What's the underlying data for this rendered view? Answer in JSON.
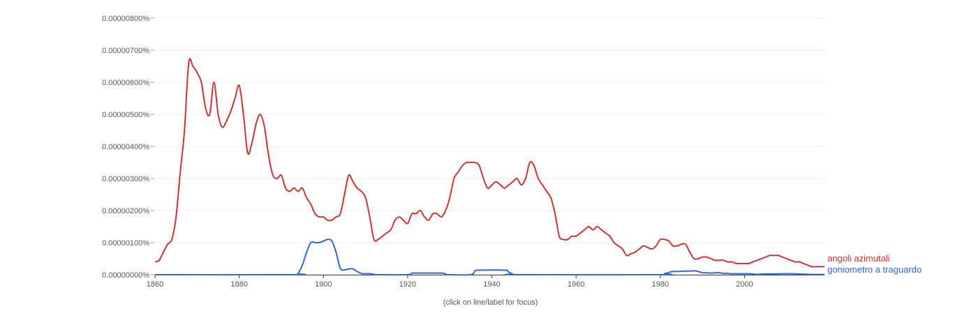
{
  "chart_data": {
    "type": "line",
    "x_ticks": [
      "1860",
      "1880",
      "1900",
      "1920",
      "1940",
      "1960",
      "1980",
      "2000"
    ],
    "y_ticks": [
      "0.00000000%",
      "0.00000100%",
      "0.00000200%",
      "0.00000300%",
      "0.00000400%",
      "0.00000500%",
      "0.00000600%",
      "0.00000700%",
      "0.00000800%"
    ],
    "xlim": [
      1860,
      2019
    ],
    "ylim": [
      0,
      8e-06
    ],
    "grid": true,
    "legend": "right, at series end",
    "series": [
      {
        "name": "angoli azimutali",
        "color": "#cc3333",
        "points": [
          [
            1860,
            4e-07
          ],
          [
            1861,
            4.5e-07
          ],
          [
            1862,
            7e-07
          ],
          [
            1863,
            9.5e-07
          ],
          [
            1864,
            1.1e-06
          ],
          [
            1865,
            1.8e-06
          ],
          [
            1866,
            3.2e-06
          ],
          [
            1867,
            4.5e-06
          ],
          [
            1868,
            6.6e-06
          ],
          [
            1869,
            6.5e-06
          ],
          [
            1870,
            6.3e-06
          ],
          [
            1871,
            6e-06
          ],
          [
            1872,
            5.2e-06
          ],
          [
            1873,
            5e-06
          ],
          [
            1874,
            6e-06
          ],
          [
            1875,
            5e-06
          ],
          [
            1876,
            4.6e-06
          ],
          [
            1877,
            4.8e-06
          ],
          [
            1878,
            5.1e-06
          ],
          [
            1879,
            5.5e-06
          ],
          [
            1880,
            5.9e-06
          ],
          [
            1881,
            5e-06
          ],
          [
            1882,
            3.8e-06
          ],
          [
            1883,
            4.1e-06
          ],
          [
            1884,
            4.7e-06
          ],
          [
            1885,
            5e-06
          ],
          [
            1886,
            4.6e-06
          ],
          [
            1887,
            3.7e-06
          ],
          [
            1888,
            3.1e-06
          ],
          [
            1889,
            3e-06
          ],
          [
            1890,
            3.1e-06
          ],
          [
            1891,
            2.7e-06
          ],
          [
            1892,
            2.6e-06
          ],
          [
            1893,
            2.7e-06
          ],
          [
            1894,
            2.6e-06
          ],
          [
            1895,
            2.7e-06
          ],
          [
            1896,
            2.4e-06
          ],
          [
            1897,
            2.2e-06
          ],
          [
            1898,
            1.9e-06
          ],
          [
            1899,
            1.8e-06
          ],
          [
            1900,
            1.8e-06
          ],
          [
            1901,
            1.7e-06
          ],
          [
            1902,
            1.7e-06
          ],
          [
            1903,
            1.8e-06
          ],
          [
            1904,
            1.9e-06
          ],
          [
            1905,
            2.5e-06
          ],
          [
            1906,
            3.1e-06
          ],
          [
            1907,
            2.9e-06
          ],
          [
            1908,
            2.7e-06
          ],
          [
            1909,
            2.6e-06
          ],
          [
            1910,
            2.4e-06
          ],
          [
            1911,
            1.8e-06
          ],
          [
            1912,
            1.1e-06
          ],
          [
            1913,
            1.1e-06
          ],
          [
            1914,
            1.2e-06
          ],
          [
            1915,
            1.3e-06
          ],
          [
            1916,
            1.4e-06
          ],
          [
            1917,
            1.7e-06
          ],
          [
            1918,
            1.8e-06
          ],
          [
            1919,
            1.7e-06
          ],
          [
            1920,
            1.6e-06
          ],
          [
            1921,
            1.9e-06
          ],
          [
            1922,
            1.9e-06
          ],
          [
            1923,
            2e-06
          ],
          [
            1924,
            1.8e-06
          ],
          [
            1925,
            1.7e-06
          ],
          [
            1926,
            1.9e-06
          ],
          [
            1927,
            1.9e-06
          ],
          [
            1928,
            1.8e-06
          ],
          [
            1929,
            2e-06
          ],
          [
            1930,
            2.4e-06
          ],
          [
            1931,
            3e-06
          ],
          [
            1932,
            3.2e-06
          ],
          [
            1933,
            3.4e-06
          ],
          [
            1934,
            3.5e-06
          ],
          [
            1935,
            3.5e-06
          ],
          [
            1936,
            3.5e-06
          ],
          [
            1937,
            3.4e-06
          ],
          [
            1938,
            3e-06
          ],
          [
            1939,
            2.7e-06
          ],
          [
            1940,
            2.8e-06
          ],
          [
            1941,
            2.9e-06
          ],
          [
            1942,
            2.8e-06
          ],
          [
            1943,
            2.7e-06
          ],
          [
            1944,
            2.8e-06
          ],
          [
            1945,
            2.9e-06
          ],
          [
            1946,
            3e-06
          ],
          [
            1947,
            2.8e-06
          ],
          [
            1948,
            3e-06
          ],
          [
            1949,
            3.5e-06
          ],
          [
            1950,
            3.4e-06
          ],
          [
            1951,
            3e-06
          ],
          [
            1952,
            2.8e-06
          ],
          [
            1953,
            2.6e-06
          ],
          [
            1954,
            2.4e-06
          ],
          [
            1955,
            1.9e-06
          ],
          [
            1956,
            1.2e-06
          ],
          [
            1957,
            1.1e-06
          ],
          [
            1958,
            1.1e-06
          ],
          [
            1959,
            1.2e-06
          ],
          [
            1960,
            1.2e-06
          ],
          [
            1961,
            1.3e-06
          ],
          [
            1962,
            1.4e-06
          ],
          [
            1963,
            1.5e-06
          ],
          [
            1964,
            1.4e-06
          ],
          [
            1965,
            1.5e-06
          ],
          [
            1966,
            1.4e-06
          ],
          [
            1967,
            1.3e-06
          ],
          [
            1968,
            1.2e-06
          ],
          [
            1969,
            1e-06
          ],
          [
            1970,
            9e-07
          ],
          [
            1971,
            8e-07
          ],
          [
            1972,
            6e-07
          ],
          [
            1973,
            6.5e-07
          ],
          [
            1974,
            7e-07
          ],
          [
            1975,
            8e-07
          ],
          [
            1976,
            9e-07
          ],
          [
            1977,
            8.5e-07
          ],
          [
            1978,
            8e-07
          ],
          [
            1979,
            9e-07
          ],
          [
            1980,
            1.1e-06
          ],
          [
            1981,
            1.1e-06
          ],
          [
            1982,
            1.05e-06
          ],
          [
            1983,
            9e-07
          ],
          [
            1984,
            9e-07
          ],
          [
            1985,
            9.5e-07
          ],
          [
            1986,
            9.5e-07
          ],
          [
            1987,
            7e-07
          ],
          [
            1988,
            5e-07
          ],
          [
            1989,
            5e-07
          ],
          [
            1990,
            5.5e-07
          ],
          [
            1991,
            5.5e-07
          ],
          [
            1992,
            5e-07
          ],
          [
            1993,
            4.5e-07
          ],
          [
            1994,
            4.5e-07
          ],
          [
            1995,
            4.5e-07
          ],
          [
            1996,
            4e-07
          ],
          [
            1997,
            4e-07
          ],
          [
            1998,
            3.5e-07
          ],
          [
            1999,
            3.5e-07
          ],
          [
            2000,
            3.5e-07
          ],
          [
            2001,
            3.5e-07
          ],
          [
            2002,
            4e-07
          ],
          [
            2003,
            4.5e-07
          ],
          [
            2004,
            5e-07
          ],
          [
            2005,
            5.5e-07
          ],
          [
            2006,
            6e-07
          ],
          [
            2007,
            6e-07
          ],
          [
            2008,
            6e-07
          ],
          [
            2009,
            5.5e-07
          ],
          [
            2010,
            5e-07
          ],
          [
            2011,
            4.5e-07
          ],
          [
            2012,
            4e-07
          ],
          [
            2013,
            4e-07
          ],
          [
            2014,
            3.5e-07
          ],
          [
            2015,
            3e-07
          ],
          [
            2016,
            2.5e-07
          ],
          [
            2017,
            2.5e-07
          ],
          [
            2018,
            2.5e-07
          ],
          [
            2019,
            2.5e-07
          ]
        ]
      },
      {
        "name": "goniometro a traguardo",
        "color": "#3366cc",
        "points": [
          [
            1860,
            0
          ],
          [
            1893,
            0
          ],
          [
            1894,
            5e-08
          ],
          [
            1895,
            3e-07
          ],
          [
            1896,
            7e-07
          ],
          [
            1897,
            1e-06
          ],
          [
            1898,
            1e-06
          ],
          [
            1899,
            1e-06
          ],
          [
            1900,
            1.05e-06
          ],
          [
            1901,
            1.1e-06
          ],
          [
            1902,
            1.05e-06
          ],
          [
            1903,
            7e-07
          ],
          [
            1904,
            2e-07
          ],
          [
            1905,
            1.5e-07
          ],
          [
            1906,
            1.8e-07
          ],
          [
            1907,
            1.8e-07
          ],
          [
            1908,
            1e-07
          ],
          [
            1909,
            4e-08
          ],
          [
            1910,
            3e-08
          ],
          [
            1911,
            3e-08
          ],
          [
            1912,
            1e-08
          ],
          [
            1913,
            0
          ],
          [
            1920,
            0
          ],
          [
            1921,
            5e-08
          ],
          [
            1922,
            5e-08
          ],
          [
            1928,
            5e-08
          ],
          [
            1929,
            1e-08
          ],
          [
            1930,
            0
          ],
          [
            1935,
            0
          ],
          [
            1936,
            1.2e-07
          ],
          [
            1937,
            1.4e-07
          ],
          [
            1943,
            1.4e-07
          ],
          [
            1944,
            8e-08
          ],
          [
            1945,
            2e-08
          ],
          [
            1946,
            0
          ],
          [
            1980,
            0
          ],
          [
            1981,
            3e-08
          ],
          [
            1982,
            7e-08
          ],
          [
            1983,
            1e-07
          ],
          [
            1984,
            1e-07
          ],
          [
            1988,
            1.2e-07
          ],
          [
            1989,
            1e-07
          ],
          [
            1990,
            6e-08
          ],
          [
            1991,
            6e-08
          ],
          [
            1992,
            5e-08
          ],
          [
            1993,
            6e-08
          ],
          [
            1994,
            6e-08
          ],
          [
            1995,
            4e-08
          ],
          [
            1996,
            4e-08
          ],
          [
            1997,
            3e-08
          ],
          [
            2001,
            3e-08
          ],
          [
            2003,
            1e-08
          ],
          [
            2004,
            2e-08
          ],
          [
            2010,
            3e-08
          ],
          [
            2011,
            3e-08
          ],
          [
            2013,
            2e-08
          ],
          [
            2015,
            1e-08
          ],
          [
            2016,
            5e-09
          ],
          [
            2019,
            5e-09
          ]
        ]
      }
    ],
    "footer_note": "(click on line/label for focus)"
  }
}
